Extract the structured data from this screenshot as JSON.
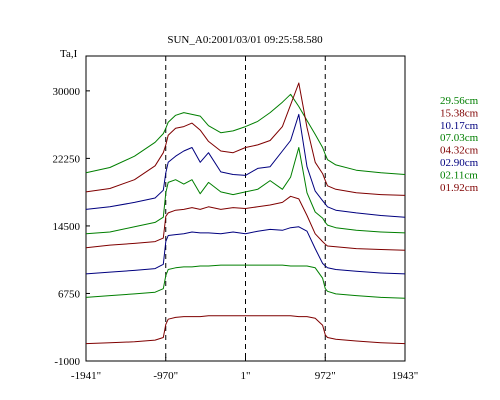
{
  "chart_data": {
    "type": "line",
    "title": "SUN_A0:2001/03/01 09:25:58.580",
    "ylabel": "Ta,I",
    "xlabel": "",
    "xlim": [
      -1941,
      1943
    ],
    "ylim": [
      -1000,
      34000
    ],
    "x_ticks": [
      {
        "value": -1941,
        "label": "-1941\""
      },
      {
        "value": -970,
        "label": "-970\""
      },
      {
        "value": 1,
        "label": "1\""
      },
      {
        "value": 972,
        "label": "972\""
      },
      {
        "value": 1943,
        "label": "1943\""
      }
    ],
    "y_ticks": [
      {
        "value": 30000,
        "label": "30000"
      },
      {
        "value": 22250,
        "label": "22250"
      },
      {
        "value": 14500,
        "label": "14500"
      },
      {
        "value": 6750,
        "label": "6750"
      },
      {
        "value": -1000,
        "label": "-1000"
      }
    ],
    "vlines_dashed": [
      -970,
      1,
      972
    ],
    "grid": false,
    "legend_position": "right",
    "x": [
      -1941,
      -1650,
      -1350,
      -1100,
      -1000,
      -970,
      -940,
      -850,
      -750,
      -650,
      -550,
      -450,
      -300,
      -150,
      1,
      150,
      300,
      450,
      550,
      650,
      750,
      850,
      940,
      972,
      1000,
      1100,
      1350,
      1650,
      1943
    ],
    "series": [
      {
        "name": "29.56cm",
        "color": "#007f00",
        "values": [
          20600,
          21200,
          22500,
          24100,
          25100,
          25700,
          26400,
          27200,
          27500,
          27300,
          27100,
          26000,
          25200,
          25400,
          25900,
          26500,
          27500,
          28700,
          29600,
          28200,
          26600,
          25000,
          23500,
          22700,
          22100,
          21500,
          20900,
          20600,
          20400
        ]
      },
      {
        "name": "15.38cm",
        "color": "#7f0000",
        "values": [
          18400,
          18800,
          19800,
          21400,
          22900,
          23800,
          24900,
          25700,
          25900,
          26300,
          25500,
          24200,
          23100,
          22900,
          23500,
          23800,
          24300,
          25900,
          28400,
          30900,
          25800,
          21800,
          20500,
          19700,
          19100,
          18700,
          18300,
          18100,
          18000
        ]
      },
      {
        "name": "10.17cm",
        "color": "#00007f",
        "values": [
          16400,
          16700,
          17200,
          17700,
          18600,
          20600,
          21800,
          22500,
          23100,
          23500,
          21800,
          22900,
          20700,
          20400,
          20300,
          21100,
          21300,
          23100,
          24300,
          27300,
          21300,
          18500,
          17400,
          17000,
          16700,
          16300,
          16000,
          15700,
          15500
        ]
      },
      {
        "name": "07.03cm",
        "color": "#007f00",
        "values": [
          13600,
          13800,
          14400,
          14900,
          15500,
          18300,
          19500,
          19800,
          19300,
          19800,
          18200,
          19500,
          18400,
          18100,
          18400,
          18700,
          19700,
          18700,
          20100,
          23500,
          18300,
          16100,
          15400,
          14900,
          14600,
          14300,
          14000,
          13800,
          13700
        ]
      },
      {
        "name": "04.32cm",
        "color": "#7f0000",
        "values": [
          12000,
          12300,
          12500,
          12700,
          13100,
          15600,
          16000,
          16300,
          16400,
          16600,
          16400,
          16700,
          16400,
          16600,
          16500,
          16700,
          16900,
          17200,
          17900,
          17600,
          15700,
          13600,
          12700,
          12400,
          12200,
          12100,
          11900,
          11800,
          11700
        ]
      },
      {
        "name": "02.90cm",
        "color": "#00007f",
        "values": [
          9000,
          9200,
          9400,
          9600,
          10100,
          12700,
          13400,
          13500,
          13600,
          13800,
          13700,
          13700,
          13600,
          13800,
          13600,
          13900,
          14100,
          14000,
          14300,
          14400,
          13900,
          11900,
          10200,
          9900,
          9700,
          9500,
          9300,
          9100,
          9000
        ]
      },
      {
        "name": "02.11cm",
        "color": "#007f00",
        "values": [
          6300,
          6500,
          6700,
          6900,
          7300,
          8800,
          9500,
          9700,
          9800,
          9800,
          9900,
          9900,
          10000,
          10000,
          10000,
          10000,
          10000,
          10000,
          9900,
          9900,
          9900,
          9700,
          8500,
          7300,
          7000,
          6700,
          6500,
          6300,
          6200
        ]
      },
      {
        "name": "01.92cm",
        "color": "#7f0000",
        "values": [
          1000,
          1100,
          1200,
          1400,
          1700,
          3200,
          3800,
          4000,
          4100,
          4100,
          4100,
          4200,
          4200,
          4200,
          4200,
          4200,
          4200,
          4200,
          4200,
          4100,
          4100,
          3900,
          3100,
          2000,
          1700,
          1500,
          1300,
          1100,
          1000
        ]
      }
    ]
  }
}
